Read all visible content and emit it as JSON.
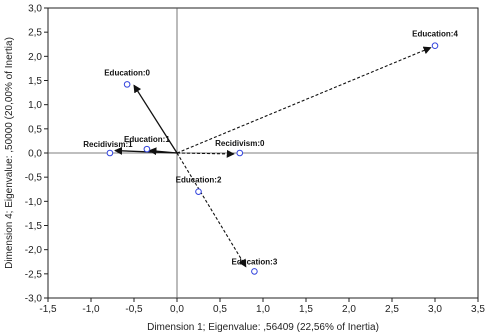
{
  "chart_data": {
    "type": "scatter",
    "xlabel": "Dimension 1; Eigenvalue: ,56409 (22,56% of Inertia)",
    "ylabel": "Dimension 4; Eigenvalue: ,50000 (20,00% of Inertia)",
    "xlim": [
      -1.5,
      3.5
    ],
    "ylim": [
      -3.0,
      3.0
    ],
    "x_ticks": [
      "-1,5",
      "-1,0",
      "-0,5",
      "0,0",
      "0,5",
      "1,0",
      "1,5",
      "2,0",
      "2,5",
      "3,0",
      "3,5"
    ],
    "y_ticks": [
      "3,0",
      "2,5",
      "2,0",
      "1,5",
      "1,0",
      "0,5",
      "0,0",
      "-0,5",
      "-1,0",
      "-1,5",
      "-2,0",
      "-2,5",
      "-3,0"
    ],
    "grid": false,
    "origin": [
      0,
      0
    ],
    "points": [
      {
        "label": "Education:0",
        "x": -0.58,
        "y": 1.42
      },
      {
        "label": "Education:1",
        "x": -0.35,
        "y": 0.08
      },
      {
        "label": "Education:2",
        "x": 0.25,
        "y": -0.8
      },
      {
        "label": "Education:3",
        "x": 0.9,
        "y": -2.45
      },
      {
        "label": "Education:4",
        "x": 3.0,
        "y": 2.22
      },
      {
        "label": "Recidivism:0",
        "x": 0.73,
        "y": 0.0
      },
      {
        "label": "Recidivism:1",
        "x": -0.78,
        "y": 0.0
      }
    ],
    "arrows": [
      {
        "to_x": -0.5,
        "to_y": 1.4,
        "style": "solid"
      },
      {
        "to_x": -0.32,
        "to_y": 0.05,
        "style": "solid"
      },
      {
        "to_x": -0.72,
        "to_y": 0.05,
        "style": "solid"
      },
      {
        "to_x": 0.66,
        "to_y": -0.02,
        "style": "dashed"
      },
      {
        "to_x": 2.95,
        "to_y": 2.18,
        "style": "dashed"
      },
      {
        "to_x": 0.8,
        "to_y": -2.35,
        "style": "dashed"
      }
    ],
    "colors": {
      "point": "#3344dd",
      "arrow": "#111111",
      "axis": "#222222"
    }
  }
}
